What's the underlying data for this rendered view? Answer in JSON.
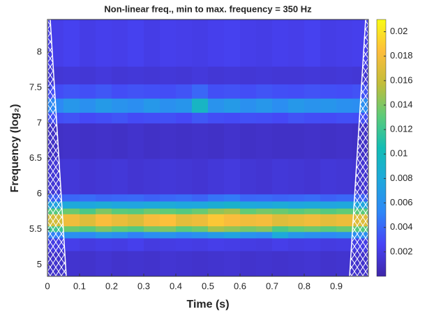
{
  "chart_data": {
    "type": "heatmap",
    "title": "Non-linear freq., min to max. frequency = 350 Hz",
    "xlabel": "Time (s)",
    "ylabel": "Frequency (log₂)",
    "xlim": [
      0,
      1
    ],
    "xticks": [
      0,
      0.1,
      0.2,
      0.3,
      0.4,
      0.5,
      0.6,
      0.7,
      0.8,
      0.9
    ],
    "ylim": [
      4.84,
      8.46
    ],
    "yticks": [
      5,
      5.5,
      6,
      6.5,
      7,
      7.5,
      8
    ],
    "xbins": [
      0,
      0.05,
      0.1,
      0.15,
      0.2,
      0.25,
      0.3,
      0.35,
      0.4,
      0.45,
      0.5,
      0.55,
      0.6,
      0.65,
      0.7,
      0.75,
      0.8,
      0.85,
      0.9,
      0.95,
      1
    ],
    "ybins": [
      4.84,
      5.2,
      5.38,
      5.47,
      5.55,
      5.72,
      5.8,
      5.9,
      6.0,
      6.5,
      7.0,
      7.15,
      7.35,
      7.55,
      7.8,
      8.46
    ],
    "values": [
      [
        0.0012,
        0.0013,
        0.0012,
        0.0014,
        0.0012,
        0.0013,
        0.0012,
        0.0014,
        0.0013,
        0.0012,
        0.0013,
        0.0014,
        0.0012,
        0.0013,
        0.0012,
        0.0013,
        0.0014,
        0.0012,
        0.0013,
        0.0012
      ],
      [
        0.002,
        0.0022,
        0.0019,
        0.0021,
        0.002,
        0.0023,
        0.0019,
        0.002,
        0.0021,
        0.002,
        0.0022,
        0.0021,
        0.002,
        0.0019,
        0.0022,
        0.002,
        0.0021,
        0.0019,
        0.002,
        0.0021
      ],
      [
        0.005,
        0.006,
        0.0055,
        0.0065,
        0.006,
        0.005,
        0.0058,
        0.0062,
        0.0055,
        0.006,
        0.0068,
        0.0075,
        0.0062,
        0.0058,
        0.008,
        0.0065,
        0.006,
        0.0055,
        0.006,
        0.0058
      ],
      [
        0.012,
        0.0135,
        0.013,
        0.014,
        0.0132,
        0.0128,
        0.0138,
        0.014,
        0.013,
        0.0135,
        0.015,
        0.0145,
        0.0138,
        0.0142,
        0.0125,
        0.0132,
        0.0136,
        0.013,
        0.0134,
        0.0128
      ],
      [
        0.0165,
        0.0178,
        0.017,
        0.0182,
        0.0175,
        0.0168,
        0.018,
        0.0185,
        0.0172,
        0.0176,
        0.0188,
        0.0182,
        0.0178,
        0.018,
        0.017,
        0.0174,
        0.0178,
        0.0172,
        0.0176,
        0.017
      ],
      [
        0.0128,
        0.0135,
        0.0125,
        0.014,
        0.013,
        0.0128,
        0.0136,
        0.0132,
        0.0128,
        0.0134,
        0.0145,
        0.015,
        0.0132,
        0.0138,
        0.0135,
        0.013,
        0.0134,
        0.0128,
        0.0132,
        0.013
      ],
      [
        0.0075,
        0.008,
        0.0078,
        0.0082,
        0.0078,
        0.0076,
        0.008,
        0.0082,
        0.0078,
        0.0079,
        0.0085,
        0.009,
        0.008,
        0.0078,
        0.0082,
        0.0078,
        0.008,
        0.0076,
        0.0079,
        0.0077
      ],
      [
        0.0038,
        0.004,
        0.0042,
        0.0039,
        0.004,
        0.0041,
        0.0038,
        0.004,
        0.0042,
        0.0039,
        0.0045,
        0.0048,
        0.004,
        0.0041,
        0.0039,
        0.004,
        0.0042,
        0.0038,
        0.004,
        0.0039
      ],
      [
        0.0015,
        0.0016,
        0.0014,
        0.0015,
        0.0016,
        0.0014,
        0.0015,
        0.0016,
        0.0015,
        0.0014,
        0.0016,
        0.0018,
        0.0015,
        0.0014,
        0.0016,
        0.0015,
        0.0014,
        0.0016,
        0.0015,
        0.0014
      ],
      [
        0.001,
        0.0011,
        0.001,
        0.0011,
        0.001,
        0.0012,
        0.001,
        0.0011,
        0.001,
        0.0011,
        0.001,
        0.0012,
        0.001,
        0.0011,
        0.001,
        0.001,
        0.0011,
        0.001,
        0.0011,
        0.001
      ],
      [
        0.003,
        0.0032,
        0.0028,
        0.003,
        0.0033,
        0.0029,
        0.003,
        0.0031,
        0.0028,
        0.0034,
        0.003,
        0.0029,
        0.0031,
        0.003,
        0.0028,
        0.0032,
        0.003,
        0.0029,
        0.0031,
        0.003
      ],
      [
        0.0055,
        0.0065,
        0.006,
        0.0068,
        0.0062,
        0.0058,
        0.0066,
        0.006,
        0.0064,
        0.0095,
        0.0062,
        0.0068,
        0.006,
        0.0065,
        0.0058,
        0.0066,
        0.0062,
        0.0064,
        0.006,
        0.0058
      ],
      [
        0.003,
        0.0033,
        0.0031,
        0.0034,
        0.003,
        0.0032,
        0.0031,
        0.003,
        0.0033,
        0.004,
        0.0031,
        0.0032,
        0.003,
        0.0033,
        0.0031,
        0.003,
        0.0032,
        0.0031,
        0.003,
        0.0032
      ],
      [
        0.0015,
        0.0016,
        0.0015,
        0.0017,
        0.0015,
        0.0016,
        0.0015,
        0.0016,
        0.0015,
        0.0017,
        0.0015,
        0.0016,
        0.0015,
        0.0016,
        0.0015,
        0.0015,
        0.0016,
        0.0015,
        0.0016,
        0.0015
      ],
      [
        0.0022,
        0.0024,
        0.0021,
        0.0023,
        0.0022,
        0.0024,
        0.0021,
        0.0023,
        0.0022,
        0.0021,
        0.0023,
        0.0024,
        0.0022,
        0.0021,
        0.0023,
        0.0022,
        0.0024,
        0.0021,
        0.0022,
        0.0023
      ]
    ],
    "clim": [
      0,
      0.021
    ],
    "cticks": [
      0.002,
      0.004,
      0.006,
      0.008,
      0.01,
      0.012,
      0.014,
      0.016,
      0.018,
      0.02
    ],
    "colormap": [
      "#3e26a8",
      "#4743f6",
      "#2e87f7",
      "#1fa8dc",
      "#13bdb4",
      "#5dcb78",
      "#c2bd3a",
      "#fdbd3c",
      "#f9fb15"
    ]
  }
}
